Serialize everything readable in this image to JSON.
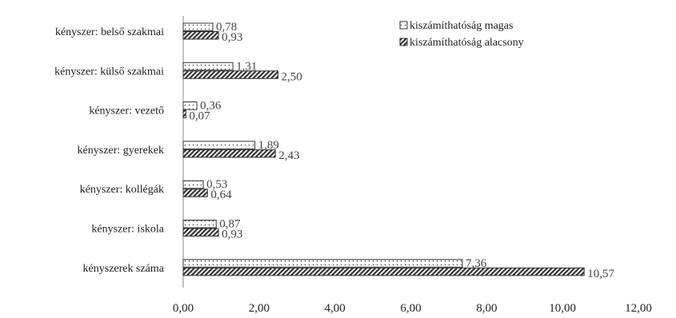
{
  "chart_data": {
    "type": "bar",
    "orientation": "horizontal",
    "categories": [
      "kényszer: belső szakmai",
      "kényszer: külső szakmai",
      "kényszer: vezető",
      "kényszer: gyerekek",
      "kényszer: kollégák",
      "kényszer: iskola",
      "kényszerek száma"
    ],
    "series": [
      {
        "name": "kiszámíthatóság magas",
        "pattern": "dotted",
        "values": [
          0.78,
          1.31,
          0.36,
          1.89,
          0.53,
          0.87,
          7.36
        ],
        "labels": [
          "0,78",
          "1,31",
          "0,36",
          "1,89",
          "0,53",
          "0,87",
          "7,36"
        ]
      },
      {
        "name": "kiszámíthatóság alacsony",
        "pattern": "hatched",
        "values": [
          0.93,
          2.5,
          0.07,
          2.43,
          0.64,
          0.93,
          10.57
        ],
        "labels": [
          "0,93",
          "2,50",
          "0,07",
          "2,43",
          "0,64",
          "0,93",
          "10,57"
        ]
      }
    ],
    "xlim": [
      0,
      12
    ],
    "xticks": [
      "0,00",
      "2,00",
      "4,00",
      "6,00",
      "8,00",
      "10,00",
      "12,00"
    ],
    "title": "",
    "xlabel": "",
    "ylabel": "",
    "grid": false,
    "legend_position": "top-right",
    "colors": {
      "bar_stroke": "#333333",
      "bar_fill": "#ffffff",
      "text": "#222222"
    }
  }
}
